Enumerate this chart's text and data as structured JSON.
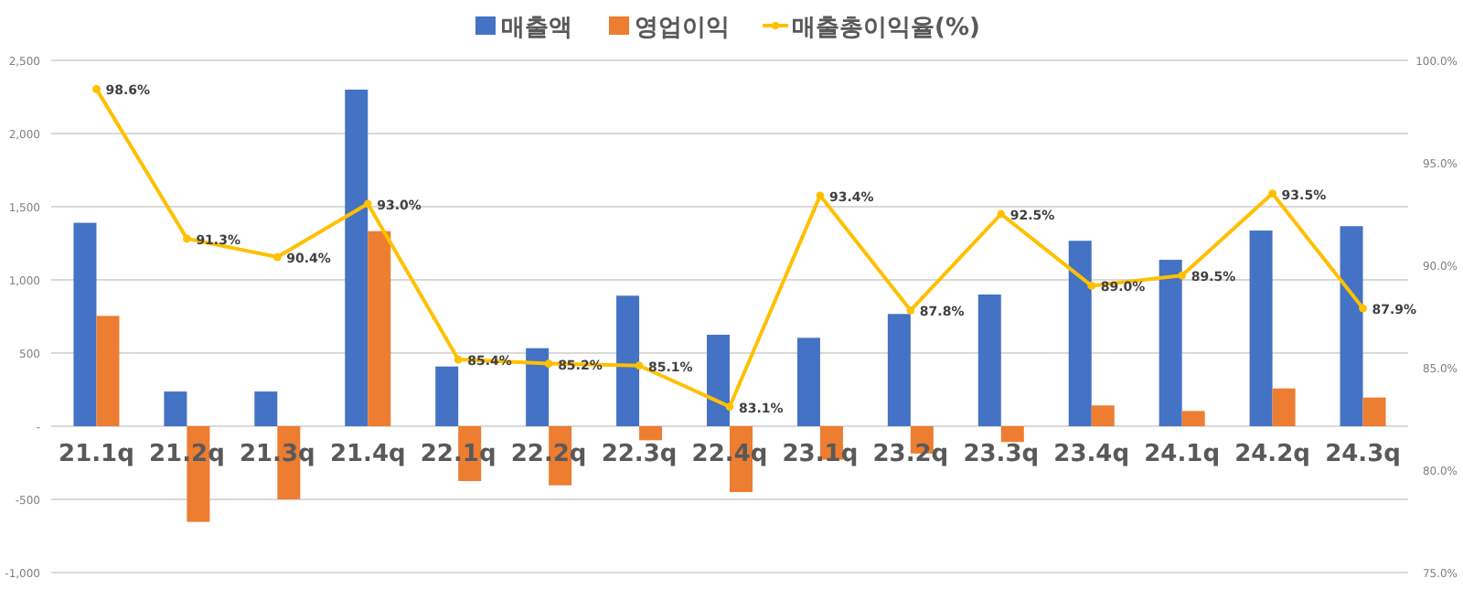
{
  "chart_data": {
    "type": "bar",
    "categories": [
      "21.1q",
      "21.2q",
      "21.3q",
      "21.4q",
      "22.1q",
      "22.2q",
      "22.3q",
      "22.4q",
      "23.1q",
      "23.2q",
      "23.3q",
      "23.4q",
      "24.1q",
      "24.2q",
      "24.3q"
    ],
    "series": [
      {
        "name": "매출액",
        "color": "#4472c4",
        "values": [
          1390,
          237,
          237,
          2300,
          408,
          533,
          892,
          625,
          604,
          767,
          900,
          1267,
          1137,
          1337,
          1367
        ]
      },
      {
        "name": "영업이익",
        "color": "#ed7d31",
        "values": [
          754,
          -654,
          -500,
          1333,
          -375,
          -404,
          -96,
          -450,
          -229,
          -187,
          -108,
          142,
          104,
          258,
          196
        ]
      },
      {
        "name": "매출총이익율(%)",
        "type": "line",
        "axis": "y2",
        "color": "#ffc000",
        "marker": "circle",
        "values": [
          98.6,
          91.3,
          90.4,
          93.0,
          85.4,
          85.2,
          85.1,
          83.1,
          93.4,
          87.8,
          92.5,
          89.0,
          89.5,
          93.5,
          87.9
        ],
        "value_labels": [
          "98.6%",
          "91.3%",
          "90.4%",
          "93.0%",
          "85.4%",
          "85.2%",
          "85.1%",
          "83.1%",
          "93.4%",
          "87.8%",
          "92.5%",
          "89.0%",
          "89.5%",
          "93.5%",
          "87.9%"
        ]
      }
    ],
    "ylim": [
      -1000,
      2500
    ],
    "yticks": [
      {
        "value": -1000,
        "label": "-1,000"
      },
      {
        "value": -500,
        "label": "-500"
      },
      {
        "value": 0,
        "label": "-"
      },
      {
        "value": 500,
        "label": "500"
      },
      {
        "value": 1000,
        "label": "1,000"
      },
      {
        "value": 1500,
        "label": "1,500"
      },
      {
        "value": 2000,
        "label": "2,000"
      },
      {
        "value": 2500,
        "label": "2,500"
      }
    ],
    "y2lim": [
      75,
      100
    ],
    "y2ticks": [
      {
        "value": 75,
        "label": "75.0%"
      },
      {
        "value": 80,
        "label": "80.0%"
      },
      {
        "value": 85,
        "label": "85.0%"
      },
      {
        "value": 90,
        "label": "90.0%"
      },
      {
        "value": 95,
        "label": "95.0%"
      },
      {
        "value": 100,
        "label": "100.0%"
      }
    ],
    "grid": "y",
    "legend": "top"
  }
}
